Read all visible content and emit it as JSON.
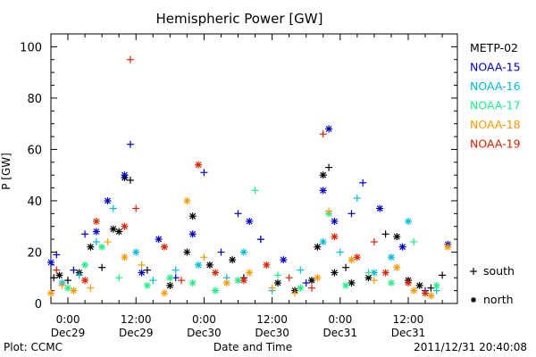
{
  "chart_data": {
    "type": "scatter",
    "title": "Hemispheric Power [GW]",
    "xlabel": "Date and Time",
    "ylabel": "P [GW]",
    "ylim": [
      0,
      105
    ],
    "xlim": [
      "2011-12-28T21:00",
      "2011-12-31T20:40"
    ],
    "y_ticks": [
      0,
      20,
      40,
      60,
      80,
      100
    ],
    "x_ticks": [
      {
        "t": "2011-12-29T00:00",
        "line1": "0:00",
        "line2": "Dec29"
      },
      {
        "t": "2011-12-29T12:00",
        "line1": "12:00",
        "line2": "Dec29"
      },
      {
        "t": "2011-12-30T00:00",
        "line1": "0:00",
        "line2": "Dec30"
      },
      {
        "t": "2011-12-30T12:00",
        "line1": "12:00",
        "line2": "Dec30"
      },
      {
        "t": "2011-12-31T00:00",
        "line1": "0:00",
        "line2": "Dec31"
      },
      {
        "t": "2011-12-31T12:00",
        "line1": "12:00",
        "line2": "Dec31"
      }
    ],
    "marker_legend": [
      {
        "symbol": "+",
        "label": "south"
      },
      {
        "symbol": "*",
        "label": "north"
      }
    ],
    "series": [
      {
        "name": "METP-02",
        "color": "#000000",
        "points": [
          [
            "2011-12-28T21:30",
            10,
            "+"
          ],
          [
            "2011-12-28T22:30",
            11,
            "*"
          ],
          [
            "2011-12-29T00:00",
            9,
            "+"
          ],
          [
            "2011-12-29T02:00",
            12,
            "*"
          ],
          [
            "2011-12-29T04:00",
            22,
            "*"
          ],
          [
            "2011-12-29T06:00",
            14,
            "+"
          ],
          [
            "2011-12-29T08:00",
            29,
            "*"
          ],
          [
            "2011-12-29T09:00",
            28,
            "*"
          ],
          [
            "2011-12-29T10:00",
            49,
            "*"
          ],
          [
            "2011-12-29T11:00",
            48,
            "+"
          ],
          [
            "2011-12-29T14:00",
            13,
            "+"
          ],
          [
            "2011-12-29T18:00",
            7,
            "*"
          ],
          [
            "2011-12-29T21:00",
            20,
            "*"
          ],
          [
            "2011-12-29T22:00",
            34,
            "*"
          ],
          [
            "2011-12-30T01:00",
            15,
            "*"
          ],
          [
            "2011-12-30T05:00",
            17,
            "*"
          ],
          [
            "2011-12-30T07:00",
            10,
            "+"
          ],
          [
            "2011-12-30T10:00",
            25,
            "+"
          ],
          [
            "2011-12-30T13:00",
            8,
            "*"
          ],
          [
            "2011-12-30T16:00",
            5,
            "*"
          ],
          [
            "2011-12-30T19:00",
            9,
            "*"
          ],
          [
            "2011-12-30T20:00",
            22,
            "*"
          ],
          [
            "2011-12-30T21:00",
            50,
            "*"
          ],
          [
            "2011-12-30T22:00",
            53,
            "+"
          ],
          [
            "2011-12-30T23:00",
            12,
            "*"
          ],
          [
            "2011-12-31T01:00",
            14,
            "+"
          ],
          [
            "2011-12-31T02:00",
            8,
            "*"
          ],
          [
            "2011-12-31T05:00",
            10,
            "*"
          ],
          [
            "2011-12-31T08:00",
            27,
            "+"
          ],
          [
            "2011-12-31T10:00",
            26,
            "*"
          ],
          [
            "2011-12-31T12:00",
            9,
            "*"
          ],
          [
            "2011-12-31T14:00",
            7,
            "*"
          ],
          [
            "2011-12-31T16:00",
            6,
            "+"
          ],
          [
            "2011-12-31T18:00",
            11,
            "+"
          ]
        ]
      },
      {
        "name": "NOAA-15",
        "color": "#0000cc",
        "points": [
          [
            "2011-12-28T21:00",
            16,
            "*"
          ],
          [
            "2011-12-28T22:00",
            19,
            "+"
          ],
          [
            "2011-12-29T01:00",
            13,
            "+"
          ],
          [
            "2011-12-29T03:00",
            27,
            "+"
          ],
          [
            "2011-12-29T05:00",
            28,
            "*"
          ],
          [
            "2011-12-29T07:00",
            40,
            "*"
          ],
          [
            "2011-12-29T10:00",
            50,
            "*"
          ],
          [
            "2011-12-29T11:00",
            62,
            "+"
          ],
          [
            "2011-12-29T13:00",
            12,
            "*"
          ],
          [
            "2011-12-29T16:00",
            25,
            "*"
          ],
          [
            "2011-12-29T19:00",
            10,
            "+"
          ],
          [
            "2011-12-29T22:00",
            27,
            "*"
          ],
          [
            "2011-12-30T00:00",
            51,
            "+"
          ],
          [
            "2011-12-30T03:00",
            20,
            "+"
          ],
          [
            "2011-12-30T06:00",
            35,
            "+"
          ],
          [
            "2011-12-30T08:00",
            32,
            "*"
          ],
          [
            "2011-12-30T10:00",
            25,
            "+"
          ],
          [
            "2011-12-30T14:00",
            17,
            "*"
          ],
          [
            "2011-12-30T18:00",
            8,
            "+"
          ],
          [
            "2011-12-30T21:00",
            44,
            "*"
          ],
          [
            "2011-12-30T22:00",
            68,
            "*"
          ],
          [
            "2011-12-30T23:00",
            32,
            "*"
          ],
          [
            "2011-12-31T02:00",
            35,
            "+"
          ],
          [
            "2011-12-31T04:00",
            47,
            "+"
          ],
          [
            "2011-12-31T07:00",
            37,
            "*"
          ],
          [
            "2011-12-31T11:00",
            22,
            "*"
          ],
          [
            "2011-12-31T15:00",
            5,
            "+"
          ],
          [
            "2011-12-31T19:00",
            23,
            "*"
          ]
        ]
      },
      {
        "name": "NOAA-16",
        "color": "#00bbdd",
        "points": [
          [
            "2011-12-28T23:00",
            8,
            "*"
          ],
          [
            "2011-12-29T02:00",
            11,
            "+"
          ],
          [
            "2011-12-29T05:00",
            24,
            "+"
          ],
          [
            "2011-12-29T08:00",
            37,
            "+"
          ],
          [
            "2011-12-29T12:00",
            20,
            "*"
          ],
          [
            "2011-12-29T15:00",
            9,
            "+"
          ],
          [
            "2011-12-29T19:00",
            13,
            "+"
          ],
          [
            "2011-12-29T23:00",
            15,
            "*"
          ],
          [
            "2011-12-30T04:00",
            10,
            "+"
          ],
          [
            "2011-12-30T07:00",
            20,
            "*"
          ],
          [
            "2011-12-30T12:00",
            5,
            "+"
          ],
          [
            "2011-12-30T17:00",
            13,
            "+"
          ],
          [
            "2011-12-30T21:00",
            24,
            "*"
          ],
          [
            "2011-12-31T00:00",
            20,
            "+"
          ],
          [
            "2011-12-31T03:00",
            41,
            "+"
          ],
          [
            "2011-12-31T06:00",
            12,
            "*"
          ],
          [
            "2011-12-31T09:00",
            18,
            "*"
          ],
          [
            "2011-12-31T12:00",
            32,
            "*"
          ],
          [
            "2011-12-31T17:00",
            5,
            "+"
          ]
        ]
      },
      {
        "name": "NOAA-17",
        "color": "#22ee88",
        "points": [
          [
            "2011-12-29T00:00",
            6,
            "*"
          ],
          [
            "2011-12-29T03:00",
            15,
            "*"
          ],
          [
            "2011-12-29T06:00",
            22,
            "*"
          ],
          [
            "2011-12-29T09:00",
            10,
            "+"
          ],
          [
            "2011-12-29T14:00",
            7,
            "*"
          ],
          [
            "2011-12-29T18:00",
            10,
            "*"
          ],
          [
            "2011-12-29T22:00",
            8,
            "*"
          ],
          [
            "2011-12-30T02:00",
            5,
            "*"
          ],
          [
            "2011-12-30T06:00",
            9,
            "*"
          ],
          [
            "2011-12-30T09:00",
            44,
            "+"
          ],
          [
            "2011-12-30T13:00",
            11,
            "+"
          ],
          [
            "2011-12-30T17:00",
            6,
            "*"
          ],
          [
            "2011-12-30T22:00",
            35,
            "*"
          ],
          [
            "2011-12-31T01:00",
            7,
            "*"
          ],
          [
            "2011-12-31T05:00",
            12,
            "+"
          ],
          [
            "2011-12-31T09:00",
            8,
            "*"
          ],
          [
            "2011-12-31T13:00",
            24,
            "+"
          ],
          [
            "2011-12-31T17:00",
            7,
            "*"
          ]
        ]
      },
      {
        "name": "NOAA-18",
        "color": "#ff9900",
        "points": [
          [
            "2011-12-28T21:00",
            4,
            "*"
          ],
          [
            "2011-12-28T23:00",
            7,
            "+"
          ],
          [
            "2011-12-29T01:00",
            5,
            "*"
          ],
          [
            "2011-12-29T04:00",
            6,
            "+"
          ],
          [
            "2011-12-29T07:00",
            24,
            "+"
          ],
          [
            "2011-12-29T10:00",
            18,
            "*"
          ],
          [
            "2011-12-29T13:00",
            15,
            "+"
          ],
          [
            "2011-12-29T17:00",
            4,
            "*"
          ],
          [
            "2011-12-29T21:00",
            40,
            "*"
          ],
          [
            "2011-12-30T00:00",
            18,
            "+"
          ],
          [
            "2011-12-30T04:00",
            8,
            "*"
          ],
          [
            "2011-12-30T08:00",
            12,
            "*"
          ],
          [
            "2011-12-30T12:00",
            6,
            "+"
          ],
          [
            "2011-12-30T16:00",
            4,
            "+"
          ],
          [
            "2011-12-30T20:00",
            10,
            "*"
          ],
          [
            "2011-12-30T22:00",
            36,
            "+"
          ],
          [
            "2011-12-31T02:00",
            17,
            "*"
          ],
          [
            "2011-12-31T06:00",
            9,
            "+"
          ],
          [
            "2011-12-31T10:00",
            14,
            "*"
          ],
          [
            "2011-12-31T13:00",
            5,
            "*"
          ],
          [
            "2011-12-31T16:00",
            3,
            "*"
          ],
          [
            "2011-12-31T19:00",
            22,
            "*"
          ]
        ]
      },
      {
        "name": "NOAA-19",
        "color": "#dd2200",
        "points": [
          [
            "2011-12-28T22:00",
            13,
            "+"
          ],
          [
            "2011-12-29T03:00",
            9,
            "*"
          ],
          [
            "2011-12-29T05:00",
            32,
            "*"
          ],
          [
            "2011-12-29T10:00",
            30,
            "*"
          ],
          [
            "2011-12-29T11:00",
            95,
            "+"
          ],
          [
            "2011-12-29T12:00",
            37,
            "+"
          ],
          [
            "2011-12-29T17:00",
            22,
            "*"
          ],
          [
            "2011-12-29T20:00",
            9,
            "+"
          ],
          [
            "2011-12-29T23:00",
            54,
            "*"
          ],
          [
            "2011-12-30T02:00",
            12,
            "*"
          ],
          [
            "2011-12-30T07:00",
            9,
            "*"
          ],
          [
            "2011-12-30T11:00",
            15,
            "*"
          ],
          [
            "2011-12-30T15:00",
            10,
            "+"
          ],
          [
            "2011-12-30T19:00",
            6,
            "+"
          ],
          [
            "2011-12-30T21:00",
            66,
            "+"
          ],
          [
            "2011-12-30T23:00",
            26,
            "*"
          ],
          [
            "2011-12-31T03:00",
            18,
            "*"
          ],
          [
            "2011-12-31T06:00",
            24,
            "+"
          ],
          [
            "2011-12-31T08:00",
            12,
            "*"
          ],
          [
            "2011-12-31T12:00",
            8,
            "*"
          ],
          [
            "2011-12-31T15:00",
            4,
            "*"
          ]
        ]
      }
    ]
  },
  "footer": {
    "plot_credit": "Plot: CCMC",
    "timestamp": "2011/12/31  20:40:08"
  }
}
